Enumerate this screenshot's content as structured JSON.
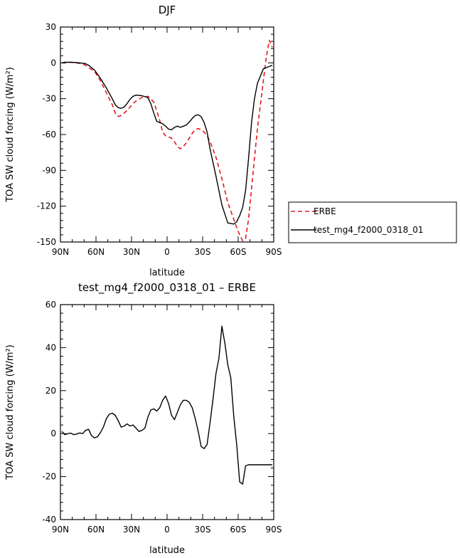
{
  "chart_data": [
    {
      "type": "line",
      "title": "DJF",
      "xlabel": "latitude",
      "ylabel": "TOA SW cloud forcing (W/m²)",
      "xlim": [
        90,
        -90
      ],
      "ylim": [
        -150,
        30
      ],
      "x_ticks": [
        {
          "value": 90,
          "label": "90N"
        },
        {
          "value": 60,
          "label": "60N"
        },
        {
          "value": 30,
          "label": "30N"
        },
        {
          "value": 0,
          "label": "0"
        },
        {
          "value": -30,
          "label": "30S"
        },
        {
          "value": -60,
          "label": "60S"
        },
        {
          "value": -90,
          "label": "90S"
        }
      ],
      "y_ticks": [
        {
          "value": 30,
          "label": "30"
        },
        {
          "value": 0,
          "label": "0"
        },
        {
          "value": -30,
          "label": "-30"
        },
        {
          "value": -60,
          "label": "-60"
        },
        {
          "value": -90,
          "label": "-90"
        },
        {
          "value": -120,
          "label": "-120"
        },
        {
          "value": -150,
          "label": "-150"
        }
      ],
      "legend_position": "outside-right",
      "series": [
        {
          "name": "ERBE",
          "color": "#e31a1c",
          "dash": "dashed",
          "x": [
            88.75,
            86.25,
            81.25,
            76.25,
            71.25,
            68.75,
            66.25,
            61.25,
            56.25,
            51.25,
            46.25,
            43.75,
            41.25,
            38.75,
            36.25,
            33.75,
            31.25,
            28.75,
            26.25,
            21.25,
            16.25,
            13.75,
            11.25,
            8.75,
            6.25,
            3.75,
            1.25,
            -1.25,
            -3.75,
            -6.25,
            -8.75,
            -11.25,
            -13.75,
            -16.25,
            -18.75,
            -21.25,
            -23.75,
            -26.25,
            -28.75,
            -31.25,
            -33.75,
            -36.25,
            -41.25,
            -46.25,
            -51.25,
            -56.25,
            -58.75,
            -61.25,
            -63.75,
            -66.25,
            -68.75,
            -71.25,
            -73.75,
            -76.25,
            -78.75,
            -81.25,
            -83.75,
            -86.25,
            -88.75
          ],
          "values": [
            0,
            0,
            0.5,
            0,
            -1,
            -2,
            -4,
            -7,
            -15,
            -25,
            -35,
            -42,
            -45,
            -44,
            -42,
            -40,
            -37,
            -34,
            -32,
            -29,
            -28,
            -30,
            -33,
            -40,
            -48,
            -58,
            -61,
            -62,
            -63,
            -66,
            -70,
            -72,
            -70,
            -67,
            -63,
            -59,
            -56,
            -55,
            -56,
            -58,
            -61,
            -66,
            -79,
            -97,
            -117,
            -131,
            -138,
            -144,
            -149,
            -147,
            -131,
            -105,
            -80,
            -55,
            -35,
            -15,
            5,
            19,
            13
          ]
        },
        {
          "name": "test_mg4_f2000_0318_01",
          "color": "#000000",
          "dash": "solid",
          "x": [
            88.75,
            86.25,
            81.25,
            76.25,
            71.25,
            68.75,
            66.25,
            61.25,
            56.25,
            51.25,
            46.25,
            43.75,
            41.25,
            38.75,
            36.25,
            33.75,
            31.25,
            28.75,
            26.25,
            21.25,
            16.25,
            13.75,
            11.25,
            8.75,
            6.25,
            3.75,
            1.25,
            -1.25,
            -3.75,
            -6.25,
            -8.75,
            -11.25,
            -13.75,
            -16.25,
            -18.75,
            -21.25,
            -23.75,
            -26.25,
            -28.75,
            -31.25,
            -33.75,
            -36.25,
            -41.25,
            -46.25,
            -51.25,
            -56.25,
            -58.75,
            -61.25,
            -63.75,
            -66.25,
            -68.75,
            -71.25,
            -73.75,
            -76.25,
            -78.75,
            -81.25,
            -83.75,
            -86.25,
            -88.75
          ],
          "values": [
            0,
            0.5,
            0.5,
            0.2,
            -0.3,
            -0.7,
            -2,
            -6,
            -13,
            -21,
            -30,
            -35,
            -37.5,
            -38,
            -37,
            -34,
            -30.5,
            -28,
            -27,
            -27.5,
            -29,
            -34,
            -42,
            -49,
            -50,
            -51,
            -53,
            -55.5,
            -56,
            -54,
            -53,
            -54,
            -53,
            -52,
            -49.5,
            -46.5,
            -44,
            -43.5,
            -45,
            -50,
            -58,
            -72,
            -95,
            -119,
            -134,
            -135,
            -133,
            -128,
            -121,
            -107,
            -80,
            -50,
            -30,
            -17,
            -11,
            -5,
            -4,
            -3,
            -2
          ]
        }
      ]
    },
    {
      "type": "line",
      "title": "test_mg4_f2000_0318_01 – ERBE",
      "xlabel": "latitude",
      "ylabel": "TOA SW cloud forcing (W/m²)",
      "xlim": [
        90,
        -90
      ],
      "ylim": [
        -40,
        60
      ],
      "x_ticks": [
        {
          "value": 90,
          "label": "90N"
        },
        {
          "value": 60,
          "label": "60N"
        },
        {
          "value": 30,
          "label": "30N"
        },
        {
          "value": 0,
          "label": "0"
        },
        {
          "value": -30,
          "label": "30S"
        },
        {
          "value": -60,
          "label": "60S"
        },
        {
          "value": -90,
          "label": "90S"
        }
      ],
      "y_ticks": [
        {
          "value": 60,
          "label": "60"
        },
        {
          "value": 40,
          "label": "40"
        },
        {
          "value": 20,
          "label": "20"
        },
        {
          "value": 0,
          "label": "0"
        },
        {
          "value": -20,
          "label": "-20"
        },
        {
          "value": -40,
          "label": "-40"
        }
      ],
      "series": [
        {
          "color": "#000000",
          "dash": "solid",
          "x": [
            88.75,
            86.25,
            83.75,
            81.25,
            78.75,
            76.25,
            73.75,
            71.25,
            68.75,
            66.25,
            63.75,
            61.25,
            58.75,
            56.25,
            53.75,
            51.25,
            48.75,
            46.25,
            43.75,
            41.25,
            38.75,
            36.25,
            33.75,
            31.25,
            28.75,
            26.25,
            23.75,
            21.25,
            18.75,
            16.25,
            13.75,
            11.25,
            8.75,
            6.25,
            3.75,
            1.25,
            -1.25,
            -3.75,
            -6.25,
            -8.75,
            -11.25,
            -13.75,
            -16.25,
            -18.75,
            -21.25,
            -23.75,
            -26.25,
            -28.75,
            -31.25,
            -33.75,
            -36.25,
            -38.75,
            -41.25,
            -43.75,
            -46.25,
            -48.75,
            -51.25,
            -53.75,
            -56.25,
            -58.75,
            -61.25,
            -63.75,
            -66.25,
            -68.75,
            -71.25,
            -73.75,
            -76.25,
            -78.75,
            -81.25,
            -83.75,
            -86.25,
            -88.75
          ],
          "values": [
            1,
            -0.5,
            0,
            0.2,
            -0.5,
            -0.2,
            0.3,
            0,
            1.5,
            2,
            -1,
            -2,
            -1.5,
            0.5,
            3,
            7,
            9,
            9.5,
            8.5,
            6,
            3,
            3.5,
            4.5,
            3.5,
            4,
            2.5,
            1,
            1.5,
            2.5,
            7.5,
            11,
            11.5,
            10.5,
            12,
            15.5,
            17.5,
            14,
            8.5,
            6.5,
            10,
            13.5,
            15.5,
            15.5,
            14.5,
            12,
            7,
            1,
            -6,
            -7,
            -5,
            5,
            16,
            28,
            35,
            50,
            42,
            32,
            26,
            8,
            -5,
            -22.5,
            -23.5,
            -15,
            -14.5,
            -14.5,
            -14.5,
            -14.5,
            -14.5,
            -14.5,
            -14.5,
            -14.5,
            -14.5
          ]
        }
      ]
    }
  ]
}
